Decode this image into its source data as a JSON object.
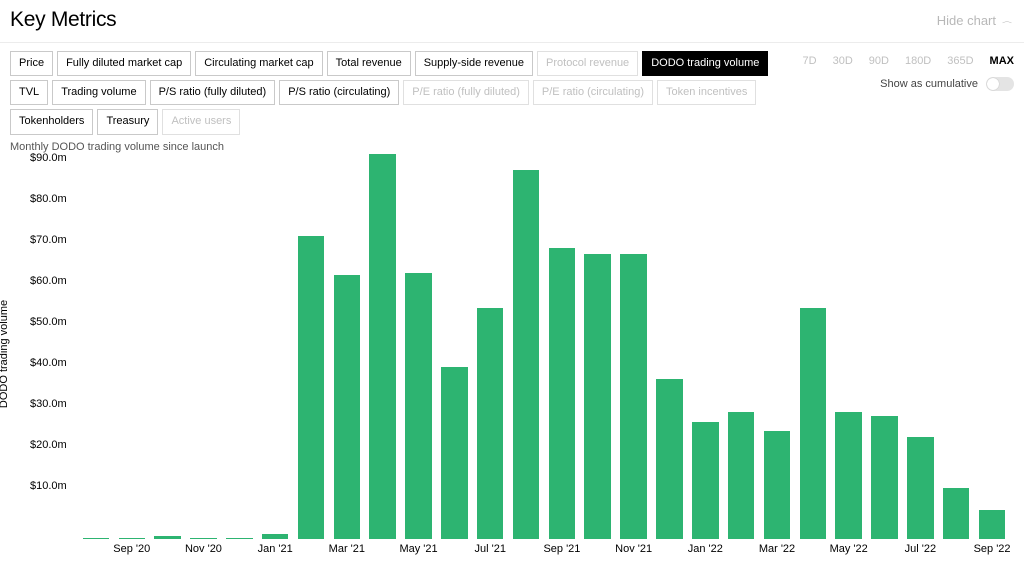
{
  "header": {
    "title": "Key Metrics",
    "hide_chart_label": "Hide chart"
  },
  "metric_buttons": [
    {
      "label": "Price",
      "state": "normal"
    },
    {
      "label": "Fully diluted market cap",
      "state": "normal"
    },
    {
      "label": "Circulating market cap",
      "state": "normal"
    },
    {
      "label": "Total revenue",
      "state": "normal"
    },
    {
      "label": "Supply-side revenue",
      "state": "normal"
    },
    {
      "label": "Protocol revenue",
      "state": "disabled"
    },
    {
      "label": "DODO trading volume",
      "state": "active"
    },
    {
      "label": "TVL",
      "state": "normal"
    },
    {
      "label": "Trading volume",
      "state": "normal"
    },
    {
      "label": "P/S ratio (fully diluted)",
      "state": "normal"
    },
    {
      "label": "P/S ratio (circulating)",
      "state": "normal"
    },
    {
      "label": "P/E ratio (fully diluted)",
      "state": "disabled"
    },
    {
      "label": "P/E ratio (circulating)",
      "state": "disabled"
    },
    {
      "label": "Token incentives",
      "state": "disabled"
    },
    {
      "label": "Tokenholders",
      "state": "normal"
    },
    {
      "label": "Treasury",
      "state": "normal"
    },
    {
      "label": "Active users",
      "state": "disabled"
    }
  ],
  "ranges": [
    {
      "label": "7D",
      "active": false
    },
    {
      "label": "30D",
      "active": false
    },
    {
      "label": "90D",
      "active": false
    },
    {
      "label": "180D",
      "active": false
    },
    {
      "label": "365D",
      "active": false
    },
    {
      "label": "MAX",
      "active": true
    }
  ],
  "cumulative_label": "Show as cumulative",
  "subtitle": "Monthly DODO trading volume since launch",
  "chart": {
    "type": "bar",
    "ylabel": "DODO trading volume",
    "ymax": 95,
    "yticks": [
      {
        "value": 10,
        "label": "$10.0m"
      },
      {
        "value": 20,
        "label": "$20.0m"
      },
      {
        "value": 30,
        "label": "$30.0m"
      },
      {
        "value": 40,
        "label": "$40.0m"
      },
      {
        "value": 50,
        "label": "$50.0m"
      },
      {
        "value": 60,
        "label": "$60.0m"
      },
      {
        "value": 70,
        "label": "$70.0m"
      },
      {
        "value": 80,
        "label": "$80.0m"
      },
      {
        "value": 90,
        "label": "$90.0m"
      }
    ],
    "bar_color": "#2db471",
    "background_color": "#ffffff",
    "bar_width_ratio": 0.74,
    "bars": [
      {
        "month": "Aug '20",
        "value": 0.2
      },
      {
        "month": "Sep '20",
        "value": 0.3
      },
      {
        "month": "Oct '20",
        "value": 0.8
      },
      {
        "month": "Nov '20",
        "value": 0.3
      },
      {
        "month": "Dec '20",
        "value": 0.3
      },
      {
        "month": "Jan '21",
        "value": 1.2
      },
      {
        "month": "Feb '21",
        "value": 74
      },
      {
        "month": "Mar '21",
        "value": 64.5
      },
      {
        "month": "Apr '21",
        "value": 94
      },
      {
        "month": "May '21",
        "value": 65
      },
      {
        "month": "Jun '21",
        "value": 42
      },
      {
        "month": "Jul '21",
        "value": 56.5
      },
      {
        "month": "Aug '21",
        "value": 90
      },
      {
        "month": "Sep '21",
        "value": 71
      },
      {
        "month": "Oct '21",
        "value": 69.5
      },
      {
        "month": "Nov '21",
        "value": 69.5
      },
      {
        "month": "Dec '21",
        "value": 39
      },
      {
        "month": "Jan '22",
        "value": 28.5
      },
      {
        "month": "Feb '22",
        "value": 31
      },
      {
        "month": "Mar '22",
        "value": 26.5
      },
      {
        "month": "Apr '22",
        "value": 56.5
      },
      {
        "month": "May '22",
        "value": 31
      },
      {
        "month": "Jun '22",
        "value": 30
      },
      {
        "month": "Jul '22",
        "value": 25
      },
      {
        "month": "Aug '22",
        "value": 12.5
      },
      {
        "month": "Sep '22",
        "value": 7
      }
    ],
    "xticks": [
      {
        "index": 1,
        "label": "Sep '20"
      },
      {
        "index": 3,
        "label": "Nov '20"
      },
      {
        "index": 5,
        "label": "Jan '21"
      },
      {
        "index": 7,
        "label": "Mar '21"
      },
      {
        "index": 9,
        "label": "May '21"
      },
      {
        "index": 11,
        "label": "Jul '21"
      },
      {
        "index": 13,
        "label": "Sep '21"
      },
      {
        "index": 15,
        "label": "Nov '21"
      },
      {
        "index": 17,
        "label": "Jan '22"
      },
      {
        "index": 19,
        "label": "Mar '22"
      },
      {
        "index": 21,
        "label": "May '22"
      },
      {
        "index": 23,
        "label": "Jul '22"
      },
      {
        "index": 25,
        "label": "Sep '22"
      }
    ]
  }
}
